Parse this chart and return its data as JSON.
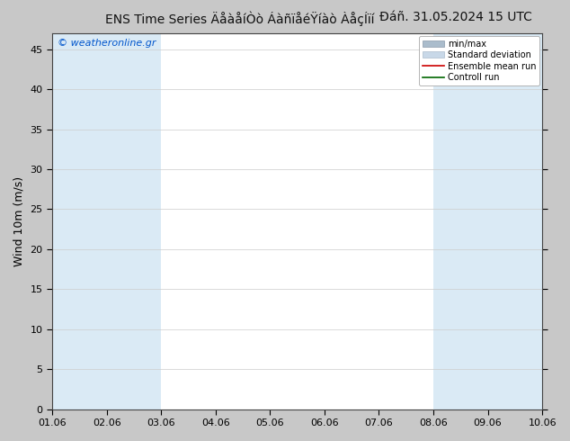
{
  "title_left": "ENS Time Series ÄåàåíÒò ÁàñïåéŸíàò ÀåçÍïí",
  "title_right": "Đáñ. 31.05.2024 15 UTC",
  "ylabel": "Wind 10m (m/s)",
  "watermark": "© weatheronline.gr",
  "xlim_start": 0,
  "xlim_end": 9,
  "ylim_min": 0,
  "ylim_max": 47,
  "yticks": [
    0,
    5,
    10,
    15,
    20,
    25,
    30,
    35,
    40,
    45
  ],
  "xtick_labels": [
    "01.06",
    "02.06",
    "03.06",
    "04.06",
    "05.06",
    "06.06",
    "07.06",
    "08.06",
    "09.06",
    "10.06"
  ],
  "shaded_band_starts": [
    0,
    1,
    7,
    8
  ],
  "shaded_band_color": "#daeaf5",
  "background_color": "#c8c8c8",
  "plot_bg_color": "#ffffff",
  "legend_labels": [
    "min/max",
    "Standard deviation",
    "Ensemble mean run",
    "Controll run"
  ],
  "legend_colors_patch": [
    "#b0c4d8",
    "#c8d8e8"
  ],
  "legend_colors_line": [
    "#cc0000",
    "#006600"
  ],
  "title_fontsize": 10,
  "axis_fontsize": 9,
  "tick_fontsize": 8,
  "watermark_color": "#0055cc",
  "grid_color": "#cccccc"
}
